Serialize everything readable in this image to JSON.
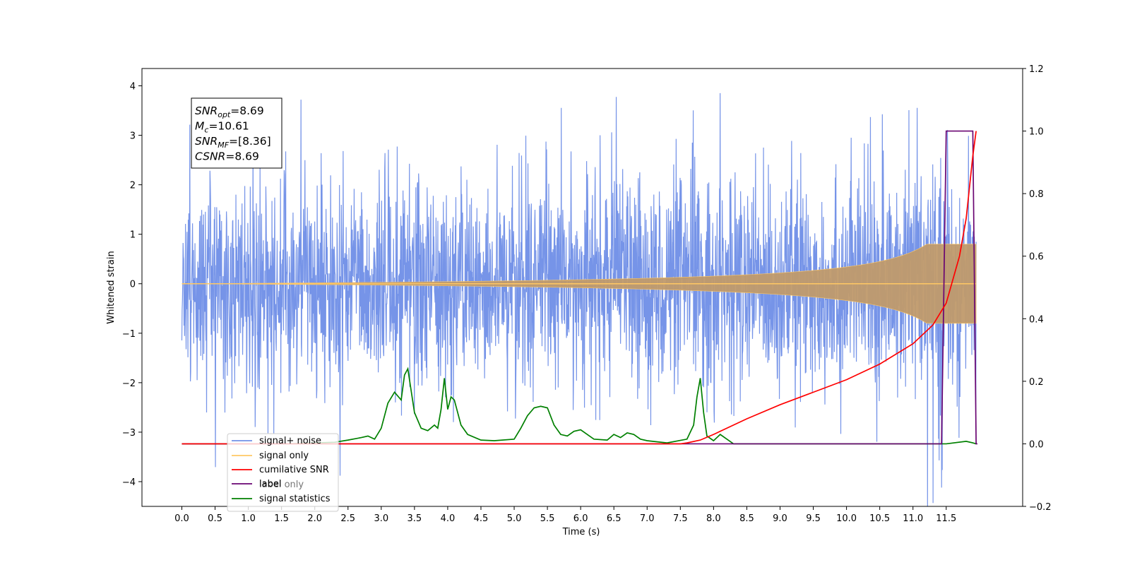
{
  "chart_data": {
    "type": "line",
    "xlabel": "Time (s)",
    "ylabel_left": "Whitened strain",
    "ylabel_right": "",
    "xlim": [
      -0.6,
      12.65
    ],
    "ylim_left": [
      -4.5,
      4.35
    ],
    "ylim_right": [
      -0.2,
      1.2
    ],
    "x_ticks": [
      "0.0",
      "0.5",
      "1.0",
      "1.5",
      "2.0",
      "2.5",
      "3.0",
      "3.5",
      "4.0",
      "4.5",
      "5.0",
      "5.5",
      "6.0",
      "6.5",
      "7.0",
      "7.5",
      "8.0",
      "8.5",
      "9.0",
      "9.5",
      "10.0",
      "10.5",
      "11.0",
      "11.5"
    ],
    "y_ticks_left": [
      "−4",
      "−3",
      "−2",
      "−1",
      "0",
      "1",
      "2",
      "3",
      "4"
    ],
    "y_ticks_right": [
      "−0.2",
      "0.0",
      "0.2",
      "0.4",
      "0.6",
      "0.8",
      "1.0",
      "1.2"
    ],
    "grid": false,
    "legend_position": "lower-left",
    "annotation": [
      {
        "name": "SNR",
        "sub": "opt",
        "value": "=8.69"
      },
      {
        "name": "M",
        "sub": "c",
        "value": "=10.61"
      },
      {
        "name": "SNR",
        "sub": "MF",
        "value": "=[8.36]"
      },
      {
        "name": "CSNR",
        "sub": "",
        "value": "=8.69"
      }
    ],
    "series": [
      {
        "name": "signal+ noise",
        "axis": "left",
        "color": "#6a8be6",
        "description_range": [
          -4.1,
          3.97
        ],
        "x_range": [
          0.0,
          11.95
        ]
      },
      {
        "name": "signal only",
        "axis": "left",
        "color": "#ffc864",
        "chirp_end_amplitude": 0.8,
        "x_range": [
          0.0,
          11.95
        ]
      },
      {
        "name": "cumilative SNR",
        "axis": "right",
        "color": "#ff0000",
        "x": [
          0.0,
          7.5,
          7.6,
          7.8,
          8.0,
          8.5,
          9.0,
          9.5,
          10.0,
          10.5,
          11.0,
          11.3,
          11.5,
          11.7,
          11.8,
          11.9,
          11.95
        ],
        "y": [
          0.0,
          0.0,
          0.003,
          0.012,
          0.03,
          0.08,
          0.125,
          0.165,
          0.205,
          0.255,
          0.32,
          0.38,
          0.45,
          0.6,
          0.72,
          0.92,
          1.0
        ]
      },
      {
        "name": "label",
        "axis": "right",
        "color": "#6a0572",
        "x": [
          0.0,
          11.43,
          11.5,
          11.9,
          11.95,
          11.97
        ],
        "y": [
          0.0,
          0.0,
          1.0,
          1.0,
          0.0,
          0.0
        ]
      },
      {
        "name": "label only",
        "axis": "right",
        "color": "#6a0572",
        "hidden_behind": true
      },
      {
        "name": "signal statistics",
        "axis": "right",
        "color": "#008000",
        "x": [
          0.0,
          1.5,
          2.0,
          2.3,
          2.5,
          2.7,
          2.8,
          2.9,
          3.0,
          3.1,
          3.2,
          3.3,
          3.35,
          3.4,
          3.5,
          3.6,
          3.7,
          3.8,
          3.85,
          3.9,
          3.95,
          4.0,
          4.05,
          4.1,
          4.2,
          4.3,
          4.5,
          4.7,
          5.0,
          5.1,
          5.2,
          5.3,
          5.4,
          5.5,
          5.6,
          5.7,
          5.8,
          5.9,
          6.0,
          6.1,
          6.2,
          6.4,
          6.5,
          6.6,
          6.7,
          6.8,
          6.9,
          7.0,
          7.3,
          7.6,
          7.7,
          7.75,
          7.8,
          7.85,
          7.9,
          8.0,
          8.1,
          8.2,
          8.3,
          9.0,
          10.0,
          11.0,
          11.5,
          11.8,
          11.9,
          11.95
        ],
        "y": [
          0.0,
          0.0,
          0.003,
          0.005,
          0.012,
          0.02,
          0.025,
          0.015,
          0.05,
          0.13,
          0.165,
          0.14,
          0.22,
          0.24,
          0.1,
          0.05,
          0.042,
          0.06,
          0.05,
          0.11,
          0.21,
          0.11,
          0.15,
          0.14,
          0.06,
          0.03,
          0.012,
          0.01,
          0.015,
          0.05,
          0.09,
          0.115,
          0.12,
          0.115,
          0.06,
          0.03,
          0.025,
          0.04,
          0.045,
          0.03,
          0.015,
          0.012,
          0.03,
          0.02,
          0.035,
          0.03,
          0.015,
          0.01,
          0.003,
          0.015,
          0.06,
          0.15,
          0.21,
          0.1,
          0.025,
          0.01,
          0.03,
          0.015,
          0.0,
          0.0,
          0.0,
          0.0,
          0.0,
          0.008,
          0.003,
          0.0
        ]
      }
    ]
  }
}
